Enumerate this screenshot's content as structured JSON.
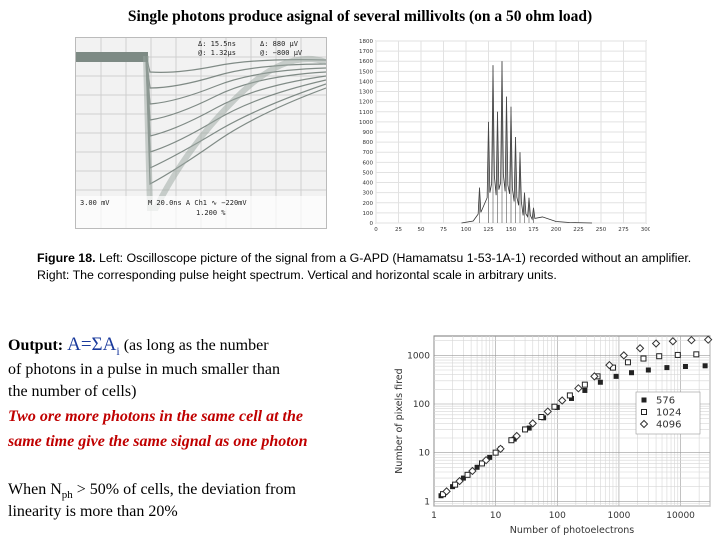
{
  "title": "Single photons produce asignal of several millivolts (on a 50 ohm load)",
  "oscilloscope": {
    "readout": [
      [
        "Δ: 15.5ns",
        "Δ: 880 μV"
      ],
      [
        "@: 1.32μs",
        "@: −800 μV"
      ]
    ],
    "bottom_left": "3.00 mV",
    "bottom_right": "M 20.0ns A  Ch1  ∿ −220mV",
    "bottom_pct": "1.200 %"
  },
  "spectrum_chart": {
    "type": "bar",
    "x_ticks": [
      "0",
      "25",
      "50",
      "75",
      "100",
      "125",
      "150",
      "175",
      "200",
      "225",
      "250",
      "275",
      "300"
    ],
    "y_ticks": [
      "0",
      "100",
      "200",
      "300",
      "400",
      "500",
      "600",
      "700",
      "800",
      "900",
      "1000",
      "1100",
      "1200",
      "1300",
      "1400",
      "1500",
      "1600",
      "1700",
      "1800"
    ],
    "xlim": [
      0,
      300
    ],
    "ylim": [
      0,
      1800
    ],
    "peaks": [
      {
        "x": 115,
        "y": 350
      },
      {
        "x": 125,
        "y": 1000
      },
      {
        "x": 130,
        "y": 1560
      },
      {
        "x": 135,
        "y": 1100
      },
      {
        "x": 140,
        "y": 1600
      },
      {
        "x": 145,
        "y": 1250
      },
      {
        "x": 150,
        "y": 1150
      },
      {
        "x": 155,
        "y": 850
      },
      {
        "x": 160,
        "y": 700
      },
      {
        "x": 165,
        "y": 300
      },
      {
        "x": 170,
        "y": 250
      },
      {
        "x": 175,
        "y": 150
      }
    ]
  },
  "caption": {
    "figure_label": "Figure 18.",
    "text": " Left:  Oscilloscope picture of the signal from a G-APD (Hamamatsu 1-53-1A-1) recorded without an amplifier.  Right:  The corresponding pulse height spectrum.  Vertical and horizontal scale in arbitrary units."
  },
  "text_block": {
    "output_label": "Output: ",
    "formula_main": "A=ΣA",
    "formula_sub": "i",
    "formula_rest": " (as long as the number",
    "line2": "of photons in a pulse in much smaller than",
    "line3": "the number of cells)",
    "red_line1": "Two ore more photons in the same cell at the",
    "red_line2": "same time give the same signal as one photon",
    "nph_pre": "When N",
    "nph_sub": "ph",
    "nph_post": " > 50% of cells, the deviation from",
    "nph_line2": "linearity is more than 20%"
  },
  "log_chart": {
    "type": "scatter",
    "xlabel": "Number of photoelectrons",
    "ylabel": "Number of pixels fired",
    "x_ticks": [
      "1",
      "10",
      "100",
      "1000",
      "10000"
    ],
    "y_ticks": [
      "1",
      "10",
      "100",
      "1000"
    ],
    "xlim": [
      1,
      30000
    ],
    "ylim": [
      0.8,
      2500
    ],
    "log_x": true,
    "log_y": true,
    "grid": true,
    "legend_position": "right",
    "series": [
      {
        "name": "576",
        "marker": "filled-square",
        "color": "#222222",
        "points": [
          [
            1.3,
            1.3
          ],
          [
            2,
            2
          ],
          [
            3,
            3
          ],
          [
            5,
            5
          ],
          [
            8,
            8
          ],
          [
            12,
            12
          ],
          [
            20,
            19
          ],
          [
            35,
            32
          ],
          [
            60,
            52
          ],
          [
            100,
            85
          ],
          [
            170,
            130
          ],
          [
            280,
            190
          ],
          [
            500,
            280
          ],
          [
            900,
            370
          ],
          [
            1600,
            440
          ],
          [
            3000,
            500
          ],
          [
            6000,
            560
          ],
          [
            12000,
            590
          ],
          [
            25000,
            610
          ]
        ]
      },
      {
        "name": "1024",
        "marker": "open-square",
        "color": "#222222",
        "points": [
          [
            1.4,
            1.4
          ],
          [
            2.2,
            2.2
          ],
          [
            3.5,
            3.5
          ],
          [
            6,
            6
          ],
          [
            10,
            10
          ],
          [
            18,
            18
          ],
          [
            30,
            30
          ],
          [
            55,
            54
          ],
          [
            90,
            88
          ],
          [
            160,
            150
          ],
          [
            280,
            250
          ],
          [
            450,
            370
          ],
          [
            800,
            560
          ],
          [
            1400,
            720
          ],
          [
            2500,
            860
          ],
          [
            4500,
            960
          ],
          [
            9000,
            1020
          ],
          [
            18000,
            1050
          ]
        ]
      },
      {
        "name": "4096",
        "marker": "open-diamond",
        "color": "#333333",
        "points": [
          [
            1.6,
            1.6
          ],
          [
            2.6,
            2.6
          ],
          [
            4.2,
            4.2
          ],
          [
            7,
            7
          ],
          [
            12,
            12
          ],
          [
            22,
            22
          ],
          [
            40,
            40
          ],
          [
            70,
            70
          ],
          [
            120,
            118
          ],
          [
            220,
            210
          ],
          [
            400,
            370
          ],
          [
            700,
            630
          ],
          [
            1200,
            1000
          ],
          [
            2200,
            1400
          ],
          [
            4000,
            1750
          ],
          [
            7500,
            1950
          ],
          [
            15000,
            2050
          ],
          [
            28000,
            2100
          ]
        ]
      }
    ]
  }
}
